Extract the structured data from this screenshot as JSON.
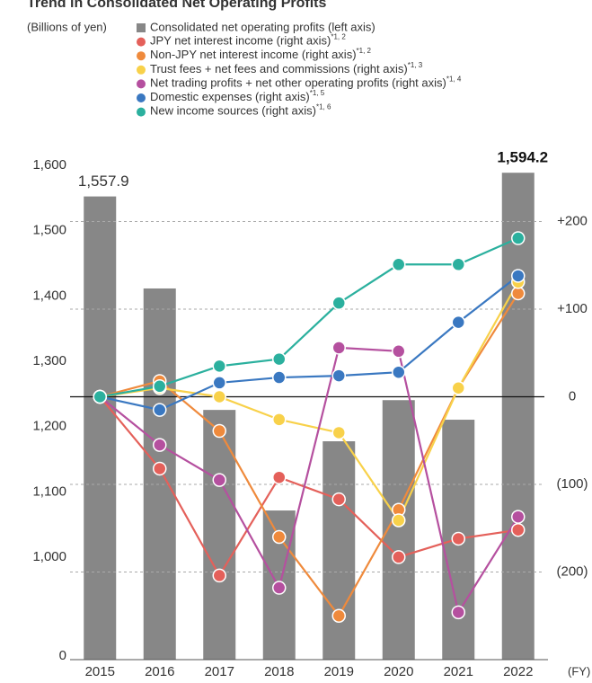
{
  "chart_data": {
    "type": "bar_line",
    "title": "Trend in Consolidated Net Operating Profits",
    "ylabel": "(Billions of yen)",
    "xlabel": "(FY)",
    "categories": [
      "2015",
      "2016",
      "2017",
      "2018",
      "2019",
      "2020",
      "2021",
      "2022"
    ],
    "bar": {
      "name": "Consolidated net operating profits (left axis)",
      "color": "#878787",
      "values": [
        1557.9,
        1417,
        1231,
        1077,
        1183,
        1246,
        1216,
        1594.2
      ],
      "value_labels": [
        "1,557.9",
        null,
        null,
        null,
        null,
        null,
        null,
        "1,594.2"
      ]
    },
    "series": [
      {
        "name": "JPY net interest income (right axis)",
        "note": "*1, 2",
        "color": "#e4605a",
        "axis": "y2",
        "values": [
          0,
          -82,
          -204,
          -92,
          -117,
          -183,
          -162,
          -152
        ]
      },
      {
        "name": "Non-JPY net interest income (right axis)",
        "note": "*1, 2",
        "color": "#ef8a3c",
        "axis": "y2",
        "values": [
          0,
          18,
          -39,
          -160,
          -250,
          -129,
          10,
          118
        ]
      },
      {
        "name": "Trust fees + net fees and commissions (right axis)",
        "note": "*1, 3",
        "color": "#f8d14a",
        "axis": "y2",
        "values": [
          0,
          10,
          0,
          -26,
          -41,
          -141,
          10,
          131
        ]
      },
      {
        "name": "Net trading profits + net other operating profits (right axis)",
        "note": "*1, 4",
        "color": "#b5509f",
        "axis": "y2",
        "values": [
          0,
          -55,
          -95,
          -218,
          56,
          52,
          -246,
          -137
        ]
      },
      {
        "name": "Domestic expenses (right axis)",
        "note": "*1, 5",
        "color": "#3a78c1",
        "axis": "y2",
        "values": [
          0,
          -15,
          16,
          22,
          24,
          28,
          85,
          138
        ]
      },
      {
        "name": "New income sources (right axis)",
        "note": "*1, 6",
        "color": "#2bb09e",
        "axis": "y2",
        "values": [
          0,
          12,
          35,
          43,
          107,
          151,
          151,
          181
        ]
      }
    ],
    "ylim": [
      1000,
      1600
    ],
    "yticks": [
      0,
      {
        "value": 1000,
        "label": "1,000"
      },
      {
        "value": 1100,
        "label": "1,100"
      },
      {
        "value": 1200,
        "label": "1,200"
      },
      {
        "value": 1300,
        "label": "1,300"
      },
      {
        "value": 1400,
        "label": "1,400"
      },
      {
        "value": 1500,
        "label": "1,500"
      },
      {
        "value": 1600,
        "label": "1,600"
      }
    ],
    "y2lim": [
      -300,
      260
    ],
    "y2ticks": [
      {
        "value": 200,
        "label": "+200"
      },
      {
        "value": 100,
        "label": "+100"
      },
      0,
      {
        "value": -100,
        "label": "(100)"
      },
      {
        "value": -200,
        "label": "(200)"
      }
    ],
    "grid": true
  }
}
